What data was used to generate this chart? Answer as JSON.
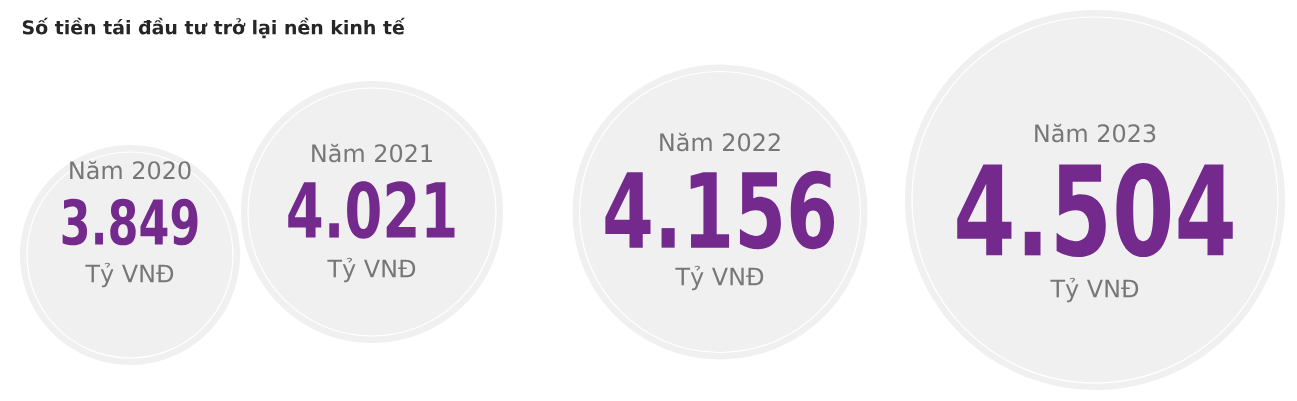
{
  "chart_data": {
    "type": "other",
    "title": "Số tiền tái đầu tư trở lại nền kinh tế",
    "categories": [
      "Năm 2020",
      "Năm 2021",
      "Năm 2022",
      "Năm 2023"
    ],
    "values": [
      3849,
      4021,
      4156,
      4504
    ],
    "value_labels": [
      "3.849",
      "4.021",
      "4.156",
      "4.504"
    ],
    "annotations": [
      "Tỷ VNĐ",
      "Tỷ VNĐ",
      "Tỷ VNĐ",
      "Tỷ VNĐ"
    ]
  }
}
